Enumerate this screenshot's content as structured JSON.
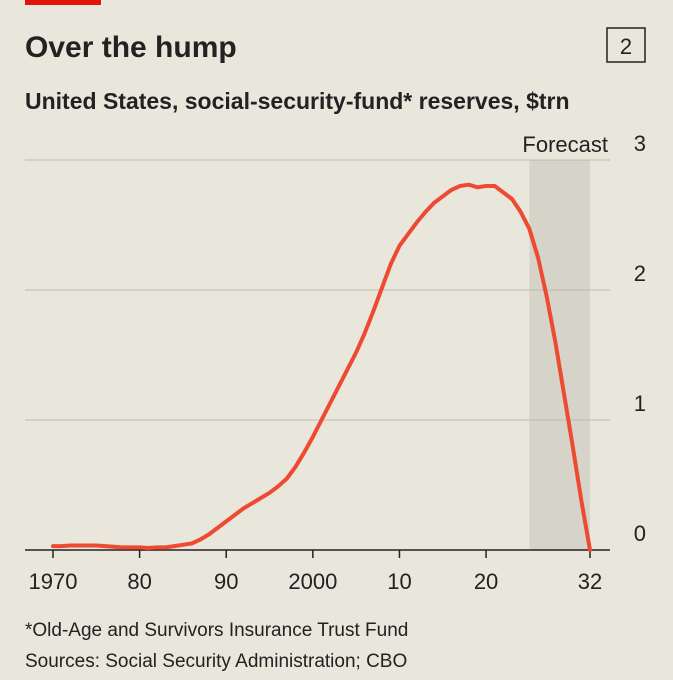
{
  "chart_data": {
    "type": "line",
    "title": "Over the hump",
    "chart_number": "2",
    "subtitle": "United States, social-security-fund* reserves, $trn",
    "footnote": "*Old-Age and Survivors Insurance Trust Fund",
    "source": "Sources: Social Security Administration; CBO",
    "forecast": {
      "label": "Forecast",
      "range": [
        2025,
        2032
      ],
      "color": "#d6d3c9"
    },
    "x": [
      1970,
      1971,
      1972,
      1973,
      1974,
      1975,
      1976,
      1977,
      1978,
      1979,
      1980,
      1981,
      1982,
      1983,
      1984,
      1985,
      1986,
      1987,
      1988,
      1989,
      1990,
      1991,
      1992,
      1993,
      1994,
      1995,
      1996,
      1997,
      1998,
      1999,
      2000,
      2001,
      2002,
      2003,
      2004,
      2005,
      2006,
      2007,
      2008,
      2009,
      2010,
      2011,
      2012,
      2013,
      2014,
      2015,
      2016,
      2017,
      2018,
      2019,
      2020,
      2021,
      2022,
      2023,
      2024,
      2025,
      2026,
      2027,
      2028,
      2029,
      2030,
      2031,
      2032
    ],
    "series": [
      {
        "color": "#ee4a32",
        "values": [
          0.03,
          0.03,
          0.035,
          0.035,
          0.035,
          0.035,
          0.03,
          0.025,
          0.02,
          0.02,
          0.02,
          0.015,
          0.02,
          0.02,
          0.03,
          0.04,
          0.05,
          0.08,
          0.12,
          0.17,
          0.22,
          0.27,
          0.32,
          0.36,
          0.4,
          0.44,
          0.49,
          0.55,
          0.64,
          0.75,
          0.87,
          1.0,
          1.13,
          1.26,
          1.39,
          1.52,
          1.67,
          1.84,
          2.02,
          2.2,
          2.34,
          2.43,
          2.52,
          2.6,
          2.67,
          2.72,
          2.77,
          2.8,
          2.81,
          2.79,
          2.8,
          2.8,
          2.75,
          2.7,
          2.6,
          2.47,
          2.25,
          1.95,
          1.6,
          1.2,
          0.8,
          0.38,
          0
        ]
      }
    ],
    "xlim": [
      1970,
      2032
    ],
    "xticks": [
      1970,
      {
        "value": 1980,
        "label": "80"
      },
      {
        "value": 1990,
        "label": "90"
      },
      2000,
      {
        "value": 2010,
        "label": "10"
      },
      {
        "value": 2020,
        "label": "20"
      },
      {
        "value": 2032,
        "label": "32"
      }
    ],
    "ylim": [
      0,
      3
    ],
    "yticks": [
      0,
      1,
      2,
      3
    ],
    "grid": true
  }
}
